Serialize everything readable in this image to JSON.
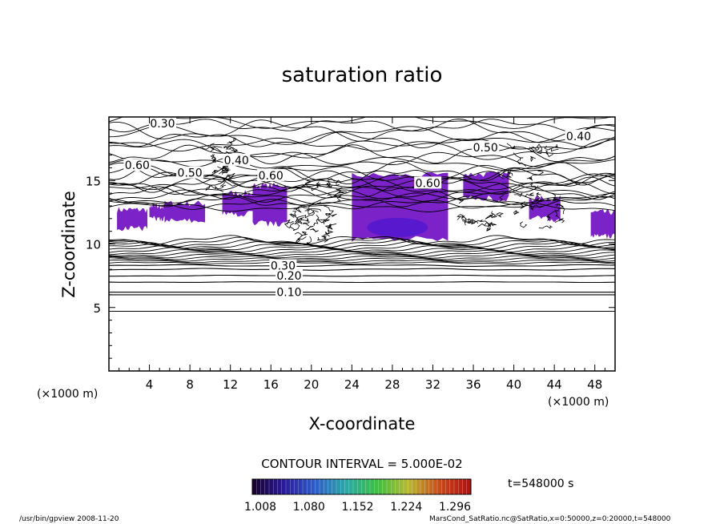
{
  "chart_data": {
    "type": "contour",
    "title": "saturation ratio",
    "xlabel": "X-coordinate",
    "ylabel": "Z-coordinate",
    "x_unit": "(×1000 m)",
    "y_unit": "(×1000 m)",
    "xlim": [
      0,
      50
    ],
    "ylim": [
      0,
      20
    ],
    "xticks": [
      4,
      8,
      12,
      16,
      20,
      24,
      28,
      32,
      36,
      40,
      44,
      48
    ],
    "yticks": [
      5,
      10,
      15
    ],
    "grid": false,
    "contour_interval_label": "CONTOUR INTERVAL = 5.000E-02",
    "time_label": "t=548000 s",
    "contour_labels": [
      {
        "text": "0.10",
        "x": 17.8,
        "z": 6.2
      },
      {
        "text": "0.20",
        "x": 17.8,
        "z": 7.5
      },
      {
        "text": "0.30",
        "x": 17.2,
        "z": 8.3
      },
      {
        "text": "0.30",
        "x": 5.3,
        "z": 19.5
      },
      {
        "text": "0.40",
        "x": 12.6,
        "z": 16.6
      },
      {
        "text": "0.40",
        "x": 46.4,
        "z": 18.5
      },
      {
        "text": "0.50",
        "x": 8.0,
        "z": 15.6
      },
      {
        "text": "0.50",
        "x": 37.2,
        "z": 17.6
      },
      {
        "text": "0.60",
        "x": 2.8,
        "z": 16.2
      },
      {
        "text": "0.60",
        "x": 16.0,
        "z": 15.4
      },
      {
        "text": "0.60",
        "x": 31.5,
        "z": 14.8
      }
    ],
    "colorbar": {
      "ticks": [
        "1.008",
        "1.080",
        "1.152",
        "1.224",
        "1.296"
      ],
      "stops": [
        "#18002a",
        "#2a1a9a",
        "#2e5cc8",
        "#2aa8a8",
        "#3cc040",
        "#b8b830",
        "#c84a1a",
        "#b01010"
      ]
    },
    "supersaturated_fill_color": "#7b22c8",
    "supersaturated_core_color": "#5018d0"
  },
  "footer": {
    "left": "/usr/bin/gpview   2008-11-20",
    "right": "MarsCond_SatRatio.nc@SatRatio,x=0:50000,z=0:20000,t=548000"
  }
}
